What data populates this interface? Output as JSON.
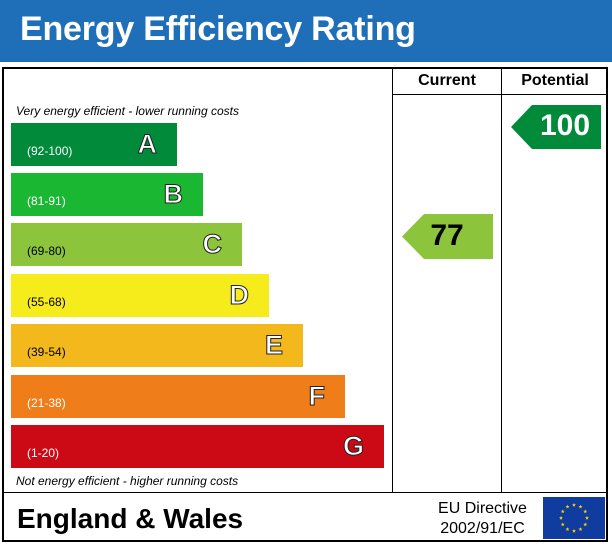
{
  "header": {
    "title": "Energy Efficiency Rating"
  },
  "columns": {
    "current": "Current",
    "potential": "Potential"
  },
  "notes": {
    "top": "Very energy efficient - lower running costs",
    "bottom": "Not energy efficient - higher running costs"
  },
  "bands": [
    {
      "range": "(92-100)",
      "letter": "A",
      "color": "#008a3a"
    },
    {
      "range": "(81-91)",
      "letter": "B",
      "color": "#1ab832"
    },
    {
      "range": "(69-80)",
      "letter": "C",
      "color": "#8cc43c"
    },
    {
      "range": "(55-68)",
      "letter": "D",
      "color": "#f7ec1b"
    },
    {
      "range": "(39-54)",
      "letter": "E",
      "color": "#f3b81c"
    },
    {
      "range": "(21-38)",
      "letter": "F",
      "color": "#ef7d1a"
    },
    {
      "range": "(1-20)",
      "letter": "G",
      "color": "#cc0a15"
    }
  ],
  "ratings": {
    "current": {
      "value": "77",
      "color": "#8cc43c"
    },
    "potential": {
      "value": "100",
      "color": "#008a3a"
    }
  },
  "footer": {
    "region": "England & Wales",
    "directive_line1": "EU Directive",
    "directive_line2": "2002/91/EC",
    "flag_icon": "eu-flag-icon",
    "flag_color": "#0f3c9e",
    "star_color": "#f5d000"
  }
}
